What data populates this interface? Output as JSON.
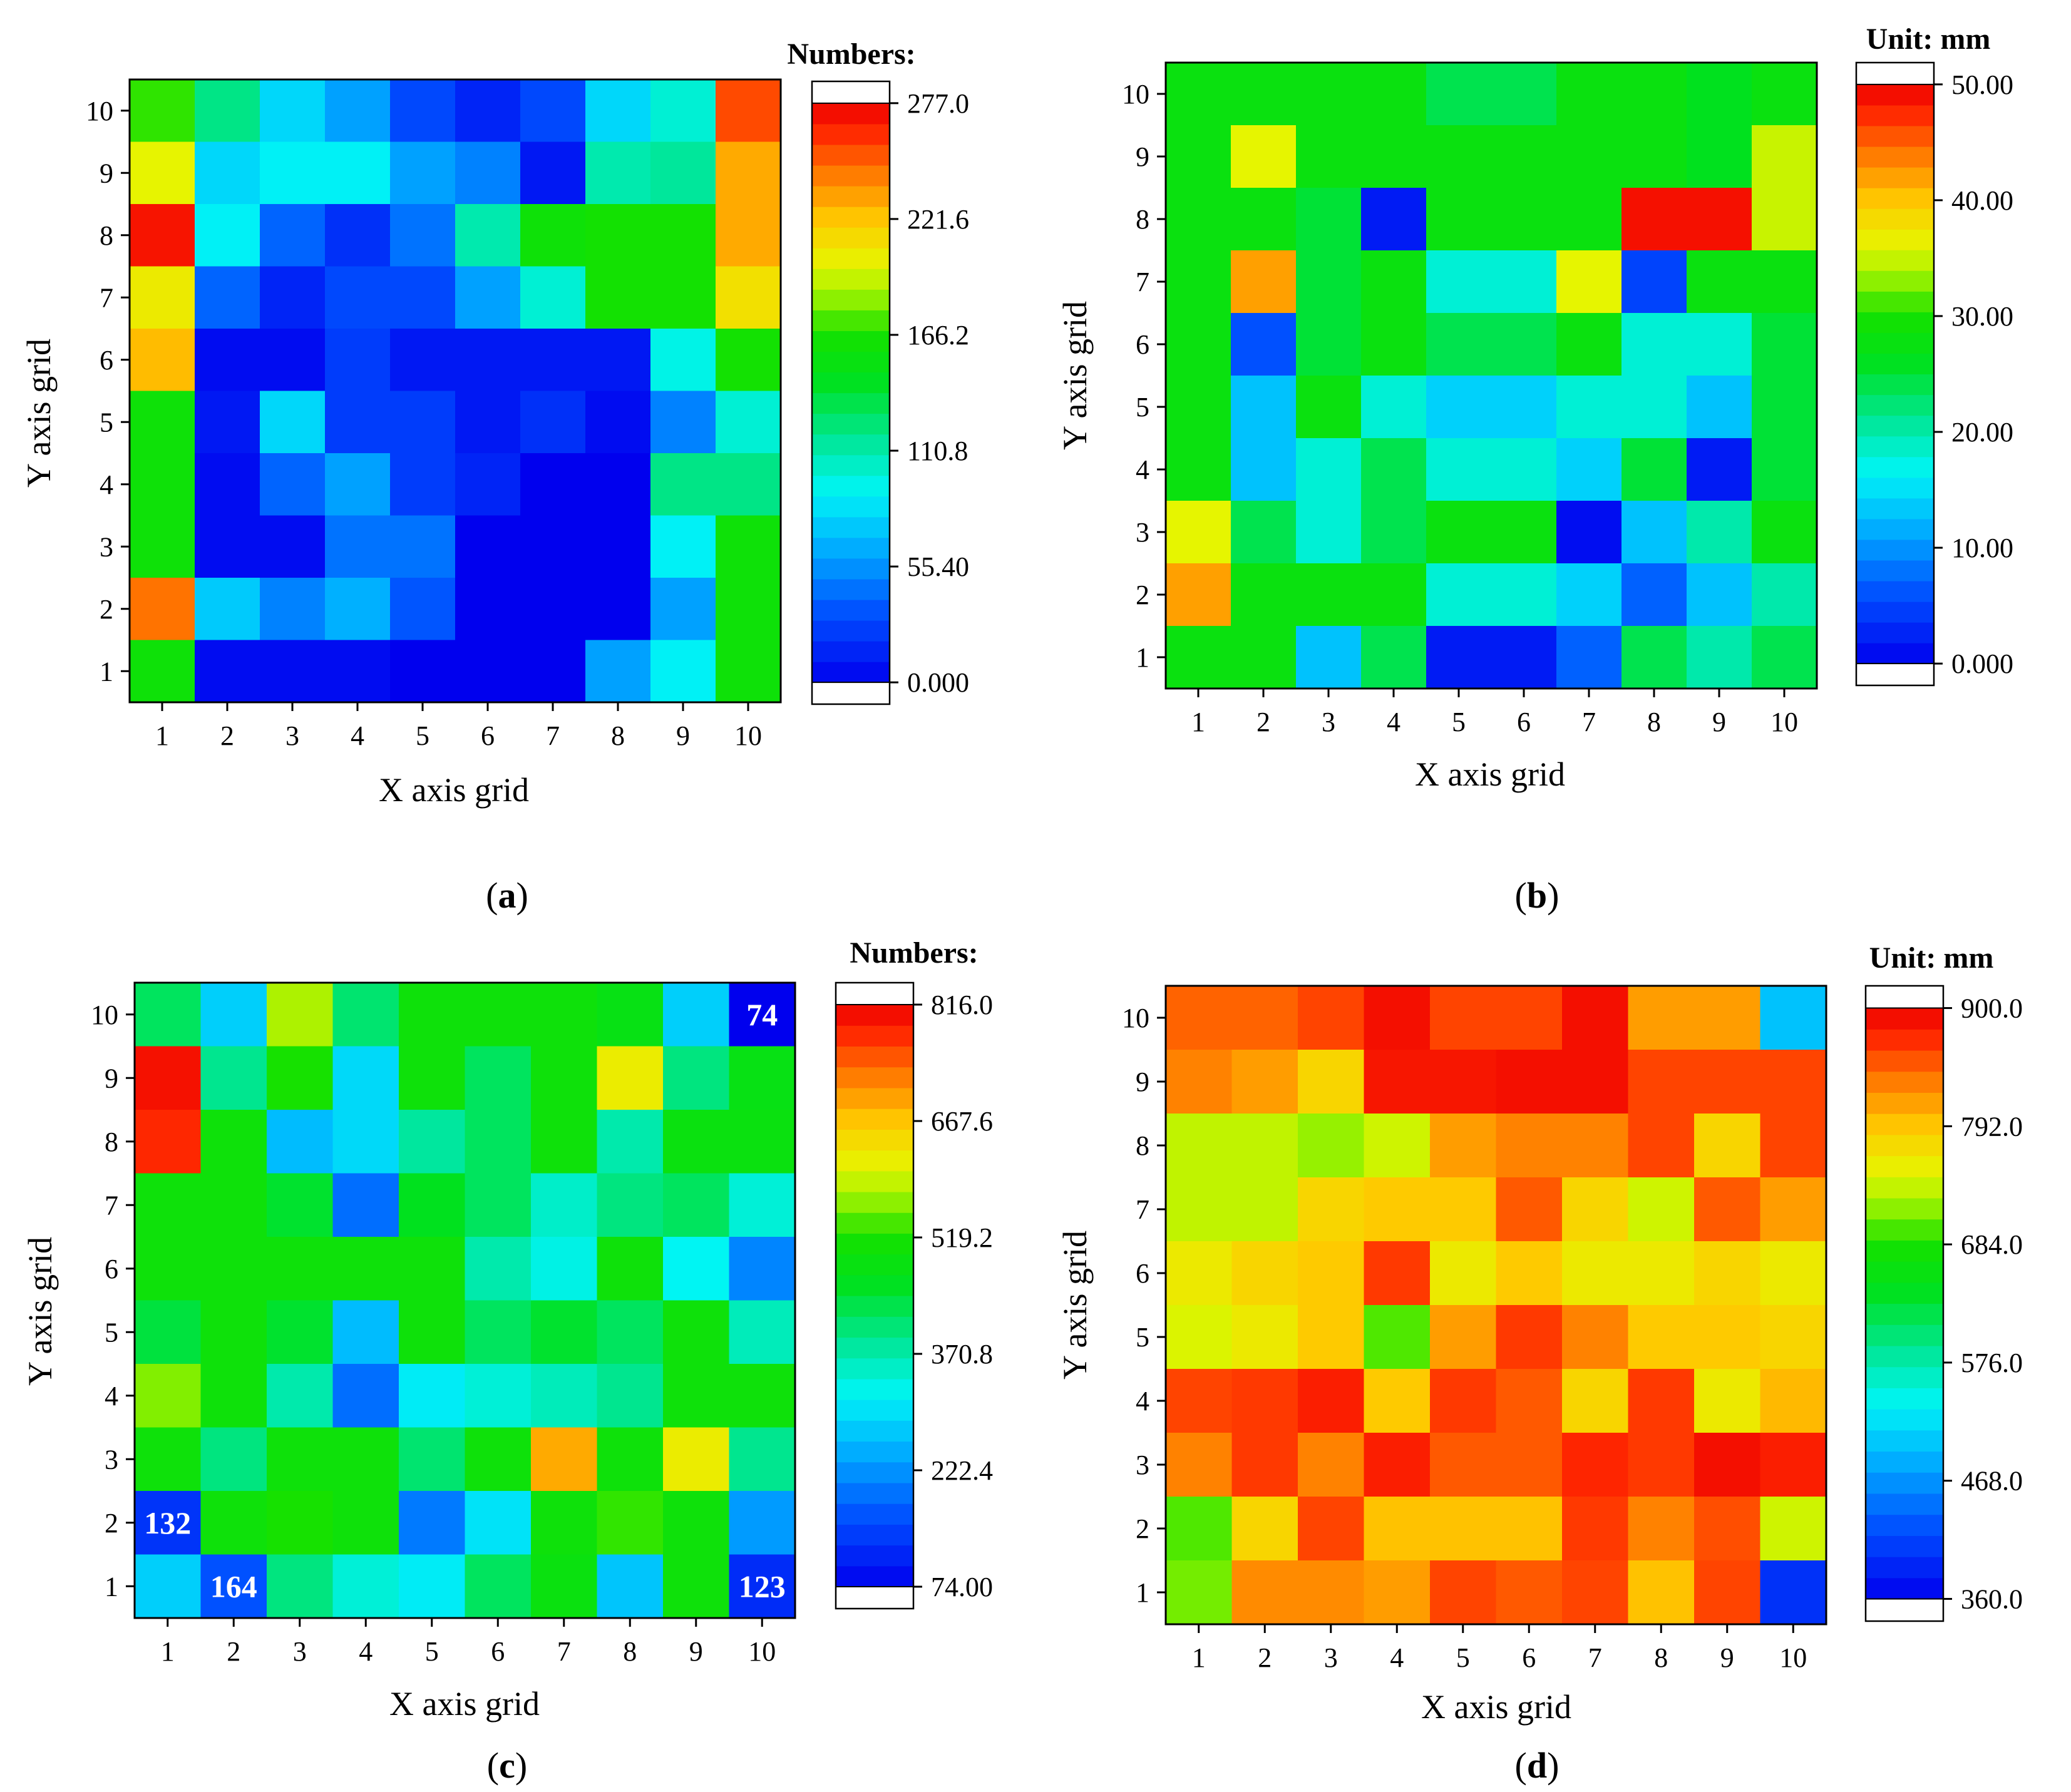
{
  "figure": {
    "panels": [
      {
        "letter": "a",
        "caption": "(a)",
        "colorbar_title": "Numbers:",
        "colorbar_ticks": [
          "277.0",
          "221.6",
          "166.2",
          "110.8",
          "55.40",
          "0.000"
        ]
      },
      {
        "letter": "b",
        "caption": "(b)",
        "colorbar_title": "Unit: mm",
        "colorbar_ticks": [
          "50.00",
          "40.00",
          "30.00",
          "20.00",
          "10.00",
          "0.000"
        ]
      },
      {
        "letter": "c",
        "caption": "(c)",
        "colorbar_title": "Numbers:",
        "colorbar_ticks": [
          "816.0",
          "667.6",
          "519.2",
          "370.8",
          "222.4",
          "74.00"
        ]
      },
      {
        "letter": "d",
        "caption": "(d)",
        "colorbar_title": "Unit: mm",
        "colorbar_ticks": [
          "900.0",
          "792.0",
          "684.0",
          "576.0",
          "468.0",
          "360.0"
        ]
      }
    ]
  },
  "chart_data": [
    {
      "type": "heatmap",
      "title": "",
      "xlabel": "X axis grid",
      "ylabel": "Y axis grid",
      "x": [
        1,
        2,
        3,
        4,
        5,
        6,
        7,
        8,
        9,
        10
      ],
      "y": [
        1,
        2,
        3,
        4,
        5,
        6,
        7,
        8,
        9,
        10
      ],
      "zlim": [
        0,
        277
      ],
      "colorbar_label": "Numbers:",
      "values_by_row_from_y10": [
        [
          170,
          120,
          80,
          60,
          30,
          15,
          30,
          80,
          100,
          255
        ],
        [
          200,
          80,
          90,
          90,
          60,
          50,
          10,
          110,
          115,
          230
        ],
        [
          270,
          90,
          40,
          20,
          45,
          110,
          160,
          165,
          165,
          230
        ],
        [
          205,
          40,
          15,
          30,
          30,
          60,
          100,
          165,
          165,
          210
        ],
        [
          225,
          5,
          5,
          25,
          10,
          10,
          10,
          10,
          95,
          165
        ],
        [
          160,
          10,
          80,
          25,
          25,
          10,
          20,
          5,
          50,
          100
        ],
        [
          160,
          5,
          40,
          60,
          25,
          15,
          0,
          0,
          120,
          120
        ],
        [
          160,
          5,
          5,
          45,
          45,
          0,
          0,
          0,
          90,
          160
        ],
        [
          245,
          75,
          50,
          65,
          35,
          0,
          0,
          0,
          60,
          160
        ],
        [
          160,
          5,
          5,
          5,
          0,
          0,
          0,
          60,
          90,
          160
        ]
      ]
    },
    {
      "type": "heatmap",
      "title": "",
      "xlabel": "X axis grid",
      "ylabel": "Y axis grid",
      "x": [
        1,
        2,
        3,
        4,
        5,
        6,
        7,
        8,
        9,
        10
      ],
      "y": [
        1,
        2,
        3,
        4,
        5,
        6,
        7,
        8,
        9,
        10
      ],
      "zlim": [
        0,
        50
      ],
      "colorbar_label": "Unit: mm",
      "values_by_row_from_y10": [
        [
          28,
          28,
          28,
          28,
          24,
          24,
          28,
          28,
          26,
          28
        ],
        [
          28,
          36,
          28,
          28,
          28,
          28,
          28,
          28,
          26,
          35
        ],
        [
          28,
          28,
          25,
          2,
          28,
          28,
          28,
          49,
          49,
          35
        ],
        [
          28,
          42,
          25,
          28,
          18,
          18,
          36,
          5,
          28,
          28
        ],
        [
          28,
          6,
          25,
          28,
          24,
          24,
          28,
          18,
          18,
          25
        ],
        [
          28,
          13,
          28,
          18,
          14,
          14,
          18,
          18,
          13,
          25
        ],
        [
          28,
          13,
          18,
          24,
          18,
          18,
          14,
          25,
          2,
          25
        ],
        [
          36,
          24,
          18,
          24,
          28,
          28,
          1,
          13,
          20,
          28
        ],
        [
          42,
          28,
          28,
          28,
          18,
          18,
          14,
          7,
          13,
          20
        ],
        [
          28,
          28,
          13,
          24,
          2,
          2,
          7,
          24,
          20,
          24
        ]
      ]
    },
    {
      "type": "heatmap",
      "title": "",
      "xlabel": "X axis grid",
      "ylabel": "Y axis grid",
      "x": [
        1,
        2,
        3,
        4,
        5,
        6,
        7,
        8,
        9,
        10
      ],
      "y": [
        1,
        2,
        3,
        4,
        5,
        6,
        7,
        8,
        9,
        10
      ],
      "zlim": [
        74,
        816
      ],
      "colorbar_label": "Numbers:",
      "values_by_row_from_y10": [
        [
          420,
          280,
          580,
          410,
          500,
          500,
          500,
          480,
          280,
          74
        ],
        [
          800,
          390,
          520,
          290,
          500,
          420,
          500,
          620,
          400,
          480
        ],
        [
          780,
          500,
          260,
          290,
          380,
          420,
          500,
          370,
          490,
          490
        ],
        [
          500,
          500,
          450,
          190,
          460,
          420,
          350,
          400,
          420,
          340
        ],
        [
          500,
          500,
          500,
          500,
          500,
          370,
          330,
          500,
          320,
          210
        ],
        [
          440,
          500,
          450,
          260,
          500,
          420,
          450,
          420,
          500,
          360
        ],
        [
          560,
          500,
          370,
          190,
          310,
          340,
          360,
          390,
          500,
          500
        ],
        [
          500,
          400,
          500,
          500,
          410,
          500,
          690,
          500,
          620,
          390
        ],
        [
          132,
          500,
          520,
          500,
          200,
          300,
          500,
          530,
          500,
          230
        ],
        [
          280,
          164,
          400,
          340,
          310,
          420,
          490,
          270,
          500,
          123
        ]
      ],
      "annotations": [
        {
          "x": 10,
          "y": 10,
          "text": "74"
        },
        {
          "x": 1,
          "y": 2,
          "text": "132"
        },
        {
          "x": 2,
          "y": 1,
          "text": "164"
        },
        {
          "x": 10,
          "y": 1,
          "text": "123"
        }
      ]
    },
    {
      "type": "heatmap",
      "title": "",
      "xlabel": "X axis grid",
      "ylabel": "Y axis grid",
      "x": [
        1,
        2,
        3,
        4,
        5,
        6,
        7,
        8,
        9,
        10
      ],
      "y": [
        1,
        2,
        3,
        4,
        5,
        6,
        7,
        8,
        9,
        10
      ],
      "zlim": [
        360,
        900
      ],
      "colorbar_label": "Unit: mm",
      "values_by_row_from_y10": [
        [
          845,
          845,
          860,
          890,
          860,
          860,
          890,
          815,
          815,
          500
        ],
        [
          830,
          815,
          780,
          885,
          885,
          890,
          890,
          860,
          860,
          860
        ],
        [
          735,
          735,
          720,
          740,
          815,
          830,
          830,
          860,
          780,
          860
        ],
        [
          735,
          735,
          780,
          790,
          790,
          850,
          780,
          740,
          850,
          815
        ],
        [
          760,
          780,
          790,
          865,
          760,
          790,
          760,
          760,
          780,
          760
        ],
        [
          745,
          760,
          790,
          700,
          815,
          865,
          830,
          790,
          790,
          780
        ],
        [
          860,
          865,
          880,
          790,
          865,
          850,
          780,
          865,
          760,
          800
        ],
        [
          830,
          865,
          830,
          880,
          850,
          850,
          875,
          865,
          890,
          880
        ],
        [
          700,
          780,
          860,
          795,
          795,
          795,
          865,
          830,
          855,
          740
        ],
        [
          710,
          825,
          825,
          815,
          860,
          850,
          860,
          795,
          860,
          400
        ]
      ]
    }
  ]
}
